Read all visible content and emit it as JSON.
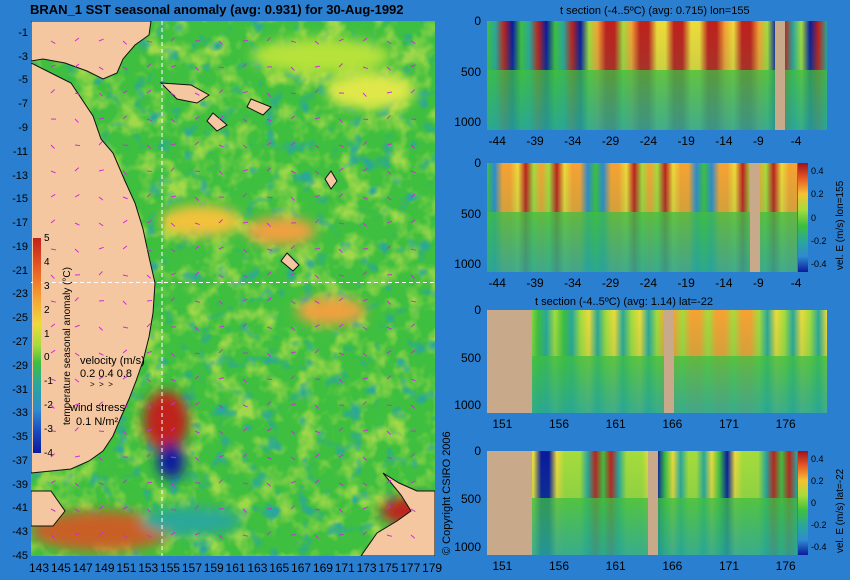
{
  "main_map": {
    "title": "BRAN_1 SST seasonal anomaly (avg: 0.931) for 30-Aug-1992",
    "lat_ticks": [
      "-1",
      "-3",
      "-5",
      "-7",
      "-9",
      "-11",
      "-13",
      "-15",
      "-17",
      "-19",
      "-21",
      "-23",
      "-25",
      "-27",
      "-29",
      "-31",
      "-33",
      "-35",
      "-37",
      "-39",
      "-41",
      "-43",
      "-45"
    ],
    "lon_ticks": [
      "143",
      "145",
      "147",
      "149",
      "151",
      "153",
      "155",
      "157",
      "159",
      "161",
      "163",
      "165",
      "167",
      "169",
      "171",
      "173",
      "175",
      "177",
      "179"
    ],
    "lon_range": [
      143,
      180
    ],
    "lat_range": [
      -45,
      0
    ],
    "crosshair": {
      "lon": 155,
      "lat": -22
    },
    "colorbar": {
      "label": "temperature seasonal anomaly (°C)",
      "ticks": [
        "5",
        "4",
        "3",
        "2",
        "1",
        "0",
        "-1",
        "-2",
        "-3",
        "-4"
      ],
      "range": [
        -4,
        5
      ]
    },
    "velocity_legend": {
      "title": "velocity (m/s)",
      "values": "0.2 0.4 0.8"
    },
    "wind_legend": {
      "title": "wind stress",
      "value": "0.1 N/m²"
    }
  },
  "panels": [
    {
      "title": "t section (-4..5ºC) (avg: 0.715) lon=155",
      "x_ticks": [
        "-44",
        "-39",
        "-34",
        "-29",
        "-24",
        "-19",
        "-14",
        "-9",
        "-4"
      ],
      "y_ticks": [
        "0",
        "500",
        "1000"
      ],
      "side_label": ""
    },
    {
      "title": "",
      "x_ticks": [
        "-44",
        "-39",
        "-34",
        "-29",
        "-24",
        "-19",
        "-14",
        "-9",
        "-4"
      ],
      "y_ticks": [
        "0",
        "500",
        "1000"
      ],
      "side_label": "vel. E (m/s) lon=155",
      "colorbar_ticks": [
        "0.4",
        "0.2",
        "0",
        "-0.2",
        "-0.4"
      ]
    },
    {
      "title": "t section (-4..5ºC) (avg: 1.14) lat=-22",
      "x_ticks": [
        "151",
        "156",
        "161",
        "166",
        "171",
        "176"
      ],
      "y_ticks": [
        "0",
        "500",
        "1000"
      ],
      "side_label": ""
    },
    {
      "title": "",
      "x_ticks": [
        "151",
        "156",
        "161",
        "166",
        "171",
        "176"
      ],
      "y_ticks": [
        "0",
        "500",
        "1000"
      ],
      "side_label": "vel. E (m/s) lat=-22",
      "colorbar_ticks": [
        "0.4",
        "0.2",
        "0",
        "-0.2",
        "-0.4"
      ]
    }
  ],
  "copyright": "© Copyright CSIRO 2006",
  "colors": {
    "background": "#2a7fd0",
    "land": "#f5c7a0",
    "ocean_mid": "#3fbf3f",
    "anomaly_hot": "#c0201c",
    "anomaly_cold": "#0a1a9c",
    "crosshair": "#ffffff",
    "vectors": "#d02adf"
  }
}
